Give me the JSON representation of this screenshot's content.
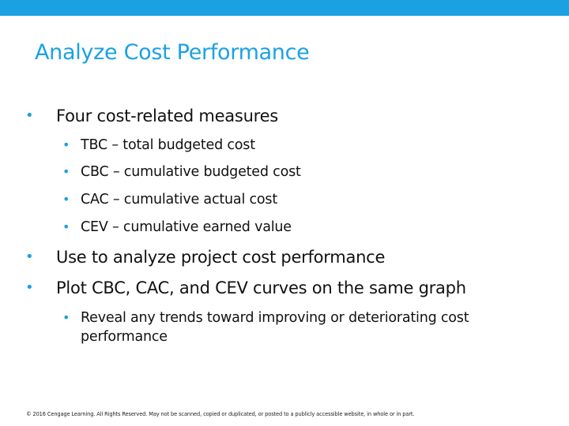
{
  "slide": {
    "title": "Analyze Cost Performance",
    "bullets": [
      {
        "text": "Four cost-related measures"
      },
      {
        "text": "TBC – total budgeted cost"
      },
      {
        "text": "CBC – cumulative budgeted cost"
      },
      {
        "text": "CAC – cumulative actual cost"
      },
      {
        "text": "CEV – cumulative earned value"
      },
      {
        "text": "Use to analyze project cost performance"
      },
      {
        "text": "Plot CBC, CAC, and CEV curves on the same graph"
      },
      {
        "text": "Reveal any trends toward improving or deteriorating cost performance"
      }
    ],
    "bullet_glyph": "•",
    "footer": "© 2016 Cengage Learning. All Rights Reserved. May not be scanned, copied or duplicated, or posted to a publicly accessible website, in whole or in part."
  },
  "colors": {
    "accent": "#1ba1e2",
    "text": "#111111"
  }
}
